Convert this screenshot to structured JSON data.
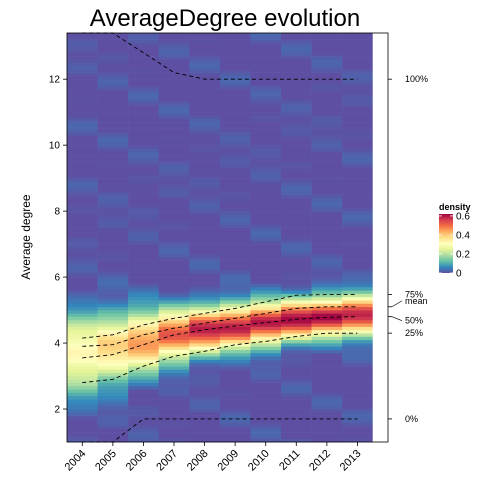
{
  "chart_data": {
    "type": "heatmap",
    "title": "AverageDegree evolution",
    "xlabel": "",
    "ylabel": "Average degree",
    "x": [
      2004,
      2005,
      2006,
      2007,
      2008,
      2009,
      2010,
      2011,
      2012,
      2013
    ],
    "xlim": [
      2003.5,
      2014.0
    ],
    "ylim": [
      1.0,
      13.4
    ],
    "yticks": [
      2,
      4,
      6,
      8,
      10,
      12
    ],
    "legend": {
      "title": "density",
      "ticks": [
        0,
        0.2,
        0.4,
        0.6
      ],
      "range": [
        0,
        0.62
      ],
      "position": "right",
      "colors": [
        "#5e4fa2",
        "#3288bd",
        "#66c2a5",
        "#abdda4",
        "#e6f598",
        "#ffffbf",
        "#fee08b",
        "#fdae61",
        "#f46d43",
        "#d53e4f",
        "#9e0142"
      ]
    },
    "density_peak": {
      "center": [
        3.7,
        3.85,
        4.05,
        4.25,
        4.4,
        4.5,
        4.6,
        4.72,
        4.8,
        4.85
      ],
      "peak_density": [
        0.33,
        0.38,
        0.46,
        0.53,
        0.58,
        0.6,
        0.6,
        0.61,
        0.61,
        0.61
      ],
      "spread": [
        0.8,
        0.72,
        0.62,
        0.52,
        0.48,
        0.45,
        0.44,
        0.42,
        0.41,
        0.4
      ]
    },
    "series": [
      {
        "name": "100%",
        "values": [
          13.4,
          13.4,
          12.8,
          12.2,
          12.0,
          12.0,
          12.0,
          12.0,
          12.0,
          12.0
        ]
      },
      {
        "name": "75%",
        "values": [
          4.15,
          4.25,
          4.55,
          4.75,
          4.9,
          5.05,
          5.25,
          5.45,
          5.47,
          5.47
        ]
      },
      {
        "name": "mean",
        "values": [
          3.9,
          3.95,
          4.25,
          4.45,
          4.6,
          4.75,
          4.9,
          5.05,
          5.1,
          5.1
        ]
      },
      {
        "name": "50%",
        "values": [
          3.55,
          3.65,
          3.95,
          4.25,
          4.4,
          4.52,
          4.62,
          4.72,
          4.78,
          4.8
        ]
      },
      {
        "name": "25%",
        "values": [
          2.8,
          2.9,
          3.3,
          3.6,
          3.75,
          3.95,
          4.05,
          4.2,
          4.3,
          4.3
        ]
      },
      {
        "name": "0%",
        "values": [
          1.0,
          1.0,
          1.7,
          1.7,
          1.7,
          1.7,
          1.7,
          1.7,
          1.7,
          1.7
        ]
      }
    ],
    "series_label_values": [
      12.0,
      5.47,
      5.1,
      4.8,
      4.3,
      1.7
    ],
    "grid": false
  }
}
